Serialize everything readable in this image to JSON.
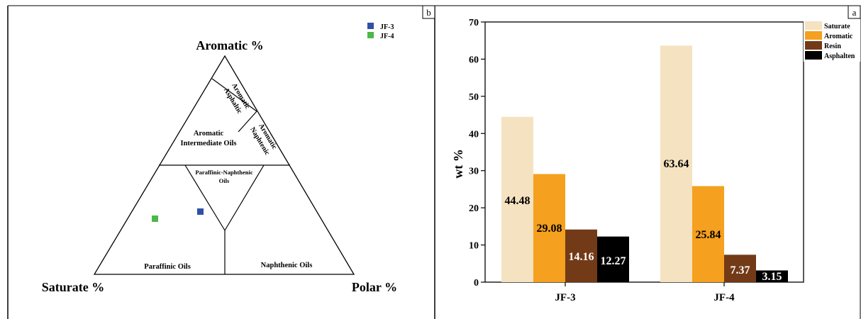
{
  "ternary": {
    "panel_label": "b",
    "apex_top": "Aromatic %",
    "apex_left": "Saturate %",
    "apex_right": "Polar %",
    "regions": {
      "aromatic_asphaltic": [
        "Aromatic",
        "Asphaltic"
      ],
      "aromatic_naphtenic": [
        "Aromatic",
        "Naphtenic"
      ],
      "aromatic_intermediate": [
        "Aromatic",
        "Intermediate Oils"
      ],
      "paraffinic_naphthenic": [
        "Paraffinic-Naphthenic",
        "Oils"
      ],
      "paraffinic": "Paraffinic Oils",
      "naphthenic": "Naphthenic Oils"
    },
    "legend": [
      {
        "name": "JF-3",
        "color": "#3050a8"
      },
      {
        "name": "JF-4",
        "color": "#4cb848"
      }
    ]
  },
  "chart_data": {
    "type": "bar",
    "panel_label": "a",
    "categories": [
      "JF-3",
      "JF-4"
    ],
    "series": [
      {
        "name": "Saturate",
        "color": "#f5e2c0",
        "values": [
          44.48,
          63.64
        ]
      },
      {
        "name": "Aromatic",
        "color": "#f5a01e",
        "values": [
          29.08,
          25.84
        ]
      },
      {
        "name": "Resin",
        "color": "#733a17",
        "values": [
          14.16,
          7.37
        ]
      },
      {
        "name": "Asphalten",
        "color": "#000000",
        "values": [
          12.27,
          3.15
        ]
      }
    ],
    "data_labels": [
      [
        "44.48",
        "29.08",
        "14.16",
        "12.27"
      ],
      [
        "63.64",
        "25.84",
        "7.37",
        "3.15"
      ]
    ],
    "ylabel": "wt %",
    "xlabel": "",
    "ylim": [
      0,
      70
    ],
    "yticks": [
      "0",
      "10",
      "20",
      "30",
      "40",
      "50",
      "60",
      "70"
    ],
    "legend_position": "top-right",
    "grid": false
  }
}
